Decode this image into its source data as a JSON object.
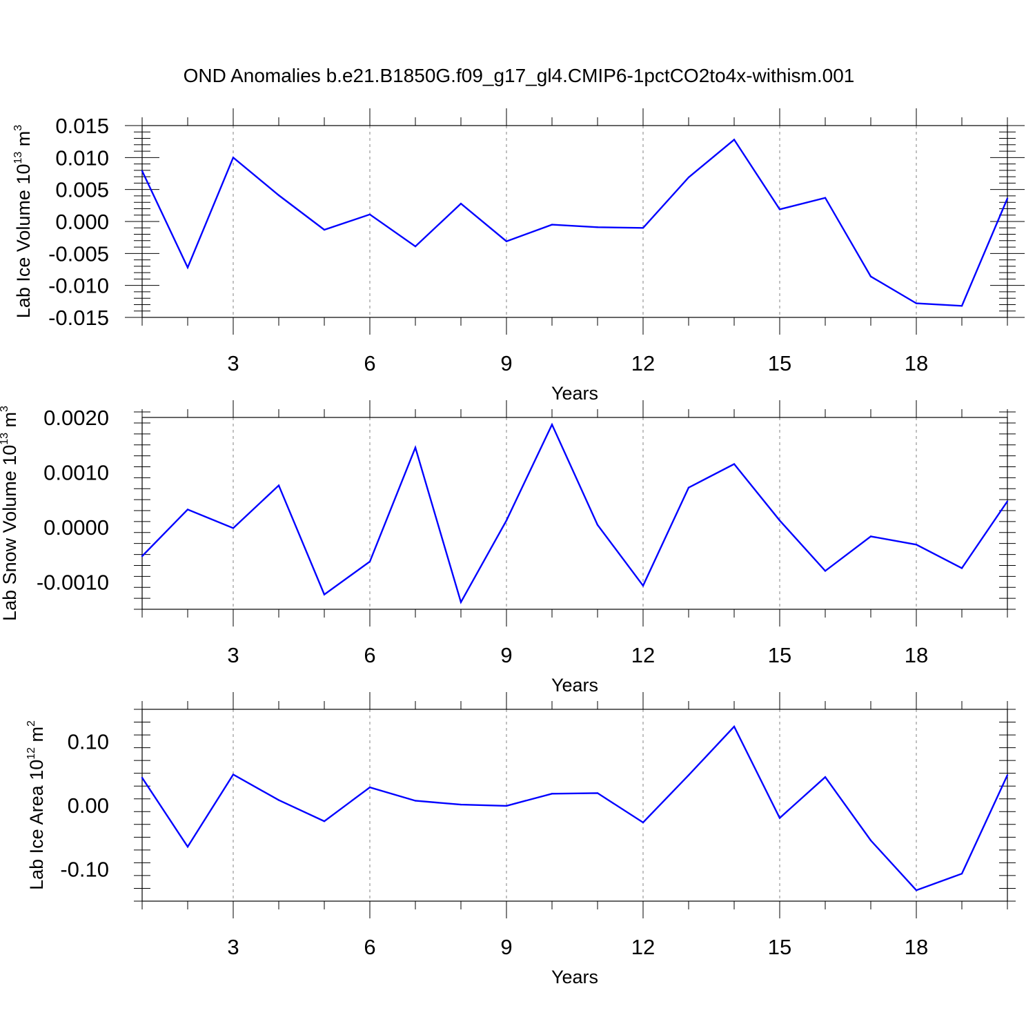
{
  "title": "OND Anomalies b.e21.B1850G.f09_g17_gl4.CMIP6-1pctCO2to4x-withism.001",
  "colors": {
    "line": "#0000ff",
    "axis": "#000000",
    "grid": "#808080"
  },
  "chart_data": [
    {
      "type": "line",
      "title": "OND Anomalies b.e21.B1850G.f09_g17_gl4.CMIP6-1pctCO2to4x-withism.001",
      "xlabel": "Years",
      "ylabel": {
        "prefix": "Lab Ice Volume 10",
        "exp": "13",
        "unit": " m",
        "unit_exp": "3"
      },
      "xlim": [
        1,
        20
      ],
      "ylim": [
        -0.015,
        0.015
      ],
      "x_ticks": [
        "3",
        "6",
        "9",
        "12",
        "15",
        "18"
      ],
      "x_tick_values": [
        3,
        6,
        9,
        12,
        15,
        18
      ],
      "y_tick_values": [
        -0.015,
        -0.01,
        -0.005,
        0.0,
        0.005,
        0.01,
        0.015
      ],
      "y_ticks": [
        "-0.015",
        "-0.010",
        "-0.005",
        "0.000",
        "0.005",
        "0.010",
        "0.015"
      ],
      "grid": "vertical dashed at labeled x ticks",
      "series": [
        {
          "x": [
            1,
            2,
            3,
            4,
            5,
            6,
            7,
            8,
            9,
            10,
            11,
            12,
            13,
            14,
            15,
            16,
            17,
            18,
            19,
            20
          ],
          "y": [
            0.0079,
            -0.0072,
            0.01,
            0.0041,
            -0.0013,
            0.0011,
            -0.0039,
            0.0028,
            -0.0031,
            -0.0005,
            -0.0009,
            -0.001,
            0.0069,
            0.0128,
            0.0019,
            0.0037,
            -0.0086,
            -0.0128,
            -0.0132,
            0.0036
          ]
        }
      ]
    },
    {
      "type": "line",
      "xlabel": "Years",
      "ylabel": {
        "prefix": "Lab Snow Volume 10",
        "exp": "13",
        "unit": " m",
        "unit_exp": "3"
      },
      "xlim": [
        1,
        20
      ],
      "ylim": [
        -0.0015,
        0.002
      ],
      "x_ticks": [
        "3",
        "6",
        "9",
        "12",
        "15",
        "18"
      ],
      "x_tick_values": [
        3,
        6,
        9,
        12,
        15,
        18
      ],
      "y_tick_values": [
        -0.001,
        0.0,
        0.001,
        0.002
      ],
      "y_ticks": [
        "-0.0010",
        "0.0000",
        "0.0010",
        "0.0020"
      ],
      "grid": "vertical dashed at labeled x ticks",
      "series": [
        {
          "x": [
            1,
            2,
            3,
            4,
            5,
            6,
            7,
            8,
            9,
            10,
            11,
            12,
            13,
            14,
            15,
            16,
            17,
            18,
            19,
            20
          ],
          "y": [
            -0.00053,
            0.00032,
            -2e-05,
            0.00076,
            -0.00123,
            -0.00063,
            0.00145,
            -0.00137,
            0.00012,
            0.00187,
            4e-05,
            -0.00107,
            0.00072,
            0.00115,
            0.00012,
            -0.0008,
            -0.00017,
            -0.00032,
            -0.00075,
            0.00047
          ]
        }
      ]
    },
    {
      "type": "line",
      "xlabel": "Years",
      "ylabel": {
        "prefix": "Lab Ice Area 10",
        "exp": "12",
        "unit": " m",
        "unit_exp": "2"
      },
      "xlim": [
        1,
        20
      ],
      "ylim": [
        -0.15,
        0.15
      ],
      "x_ticks": [
        "3",
        "6",
        "9",
        "12",
        "15",
        "18"
      ],
      "x_tick_values": [
        3,
        6,
        9,
        12,
        15,
        18
      ],
      "y_tick_values": [
        -0.1,
        0.0,
        0.1
      ],
      "y_ticks": [
        "-0.10",
        "0.00",
        "0.10"
      ],
      "grid": "vertical dashed at labeled x ticks",
      "series": [
        {
          "x": [
            1,
            2,
            3,
            4,
            5,
            6,
            7,
            8,
            9,
            10,
            11,
            12,
            13,
            14,
            15,
            16,
            17,
            18,
            19,
            20
          ],
          "y": [
            0.043,
            -0.065,
            0.048,
            0.008,
            -0.025,
            0.028,
            0.007,
            0.001,
            -0.001,
            0.018,
            0.019,
            -0.027,
            0.047,
            0.123,
            -0.02,
            0.044,
            -0.055,
            -0.133,
            -0.107,
            0.047
          ]
        }
      ]
    }
  ]
}
